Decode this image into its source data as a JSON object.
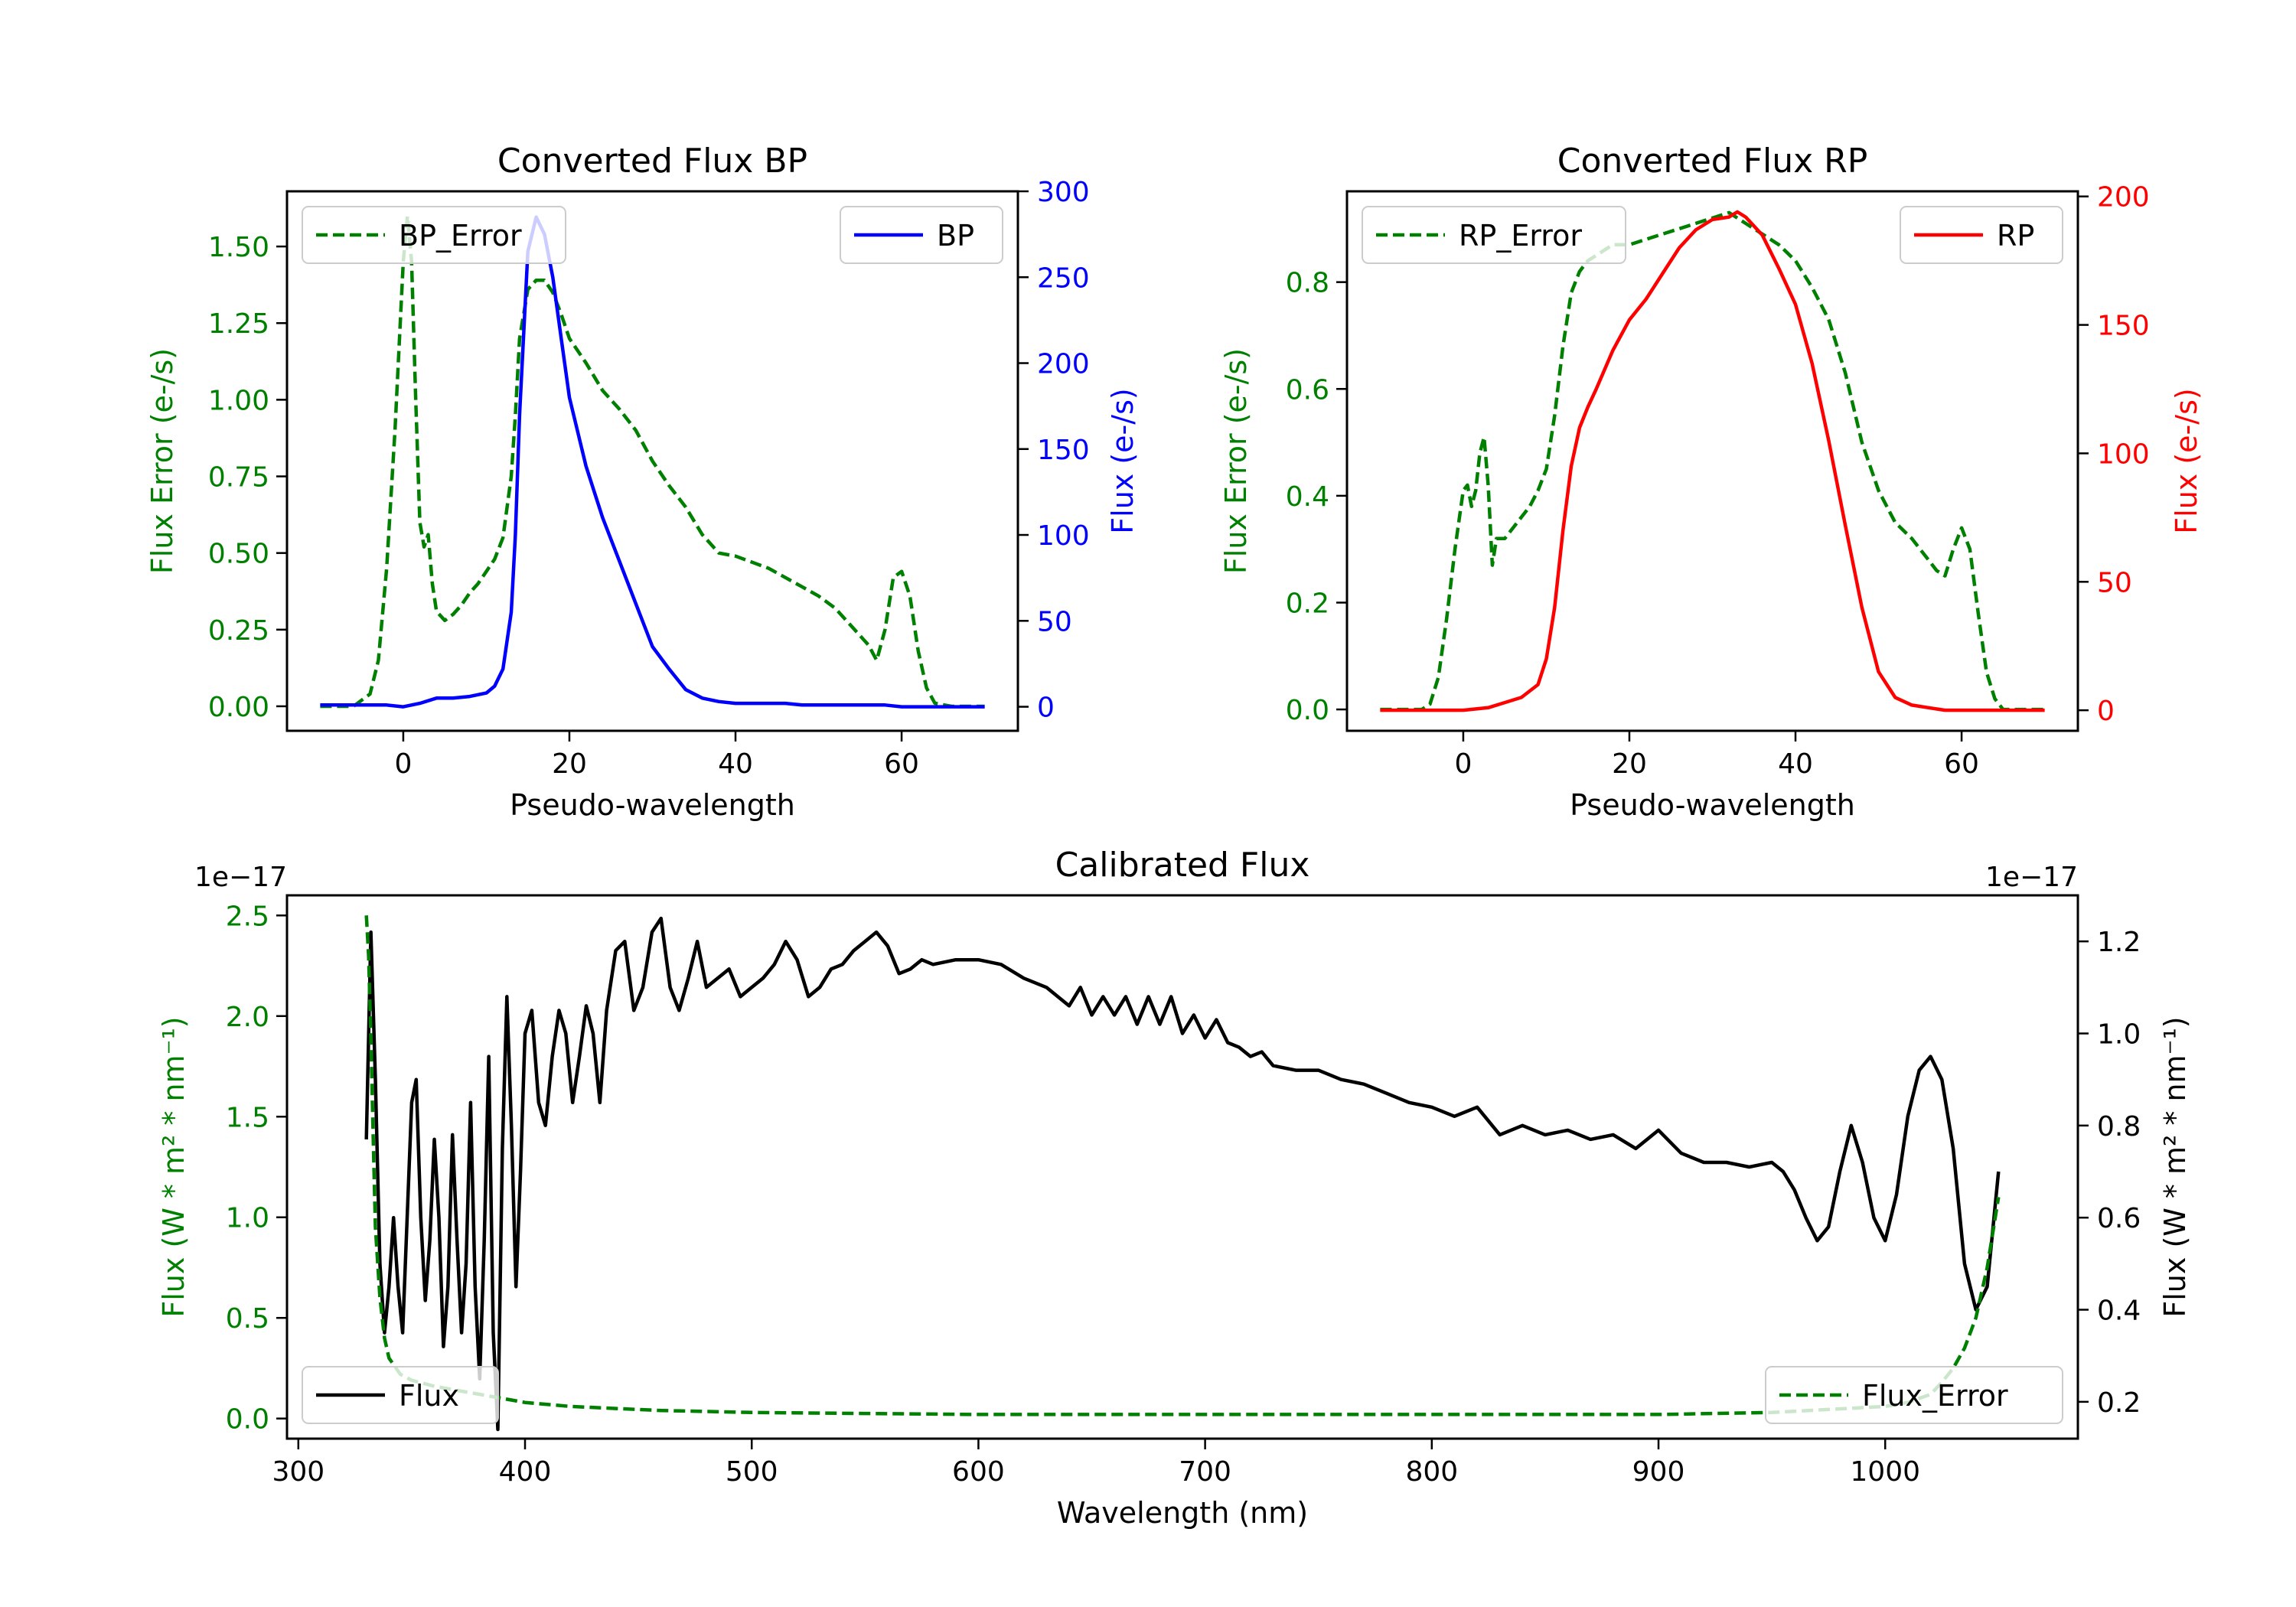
{
  "chart_data": [
    {
      "type": "line",
      "title": "Converted Flux BP",
      "xlabel": "Pseudo-wavelength",
      "xlim": [
        -14,
        74
      ],
      "x_ticks": [
        0,
        20,
        40,
        60
      ],
      "y_left": {
        "label": "Flux Error (e-/s)",
        "color": "#008000",
        "ylim": [
          -0.08,
          1.68
        ],
        "ticks": [
          0.0,
          0.25,
          0.5,
          0.75,
          1.0,
          1.25,
          1.5
        ],
        "tick_labels": [
          "0.00",
          "0.25",
          "0.50",
          "0.75",
          "1.00",
          "1.25",
          "1.50"
        ]
      },
      "y_right": {
        "label": "Flux (e-/s)",
        "color": "#0000ff",
        "ylim": [
          -14,
          300
        ],
        "ticks": [
          0,
          50,
          100,
          150,
          200,
          250,
          300
        ],
        "tick_labels": [
          "0",
          "50",
          "100",
          "150",
          "200",
          "250",
          "300"
        ]
      },
      "series": [
        {
          "name": "BP_Error",
          "axis": "left",
          "color": "#008000",
          "dash": true,
          "legend_loc": "upper left",
          "x": [
            -10,
            -8,
            -6,
            -4,
            -3,
            -2,
            -1,
            0,
            0.5,
            1,
            1.5,
            2,
            2.5,
            3,
            3.5,
            4,
            5,
            6,
            7,
            8,
            9,
            10,
            11,
            12,
            13,
            13.5,
            14,
            15,
            16,
            17,
            18,
            19,
            20,
            22,
            24,
            26,
            28,
            30,
            32,
            34,
            36,
            38,
            40,
            42,
            44,
            46,
            48,
            50,
            52,
            54,
            56,
            57,
            58,
            59,
            60,
            61,
            62,
            63,
            64,
            66,
            68,
            70
          ],
          "values": [
            0,
            0,
            0,
            0.04,
            0.15,
            0.45,
            0.9,
            1.45,
            1.6,
            1.45,
            1.0,
            0.6,
            0.52,
            0.56,
            0.4,
            0.31,
            0.28,
            0.3,
            0.33,
            0.37,
            0.4,
            0.44,
            0.48,
            0.55,
            0.75,
            0.95,
            1.2,
            1.36,
            1.39,
            1.39,
            1.35,
            1.28,
            1.2,
            1.12,
            1.03,
            0.97,
            0.9,
            0.8,
            0.72,
            0.65,
            0.56,
            0.5,
            0.49,
            0.47,
            0.45,
            0.42,
            0.39,
            0.36,
            0.32,
            0.26,
            0.2,
            0.15,
            0.25,
            0.42,
            0.44,
            0.36,
            0.18,
            0.06,
            0.01,
            0,
            0,
            0
          ]
        },
        {
          "name": "BP",
          "axis": "right",
          "color": "#0000ff",
          "dash": false,
          "legend_loc": "upper right",
          "x": [
            -10,
            -5,
            -2,
            0,
            2,
            4,
            6,
            8,
            10,
            11,
            12,
            13,
            13.5,
            14,
            15,
            16,
            17,
            18,
            19,
            20,
            22,
            24,
            26,
            28,
            30,
            32,
            34,
            36,
            38,
            40,
            42,
            44,
            46,
            48,
            50,
            52,
            54,
            56,
            58,
            60,
            62,
            64,
            66,
            68,
            70
          ],
          "values": [
            1,
            1,
            1,
            0,
            2,
            5,
            5,
            6,
            8,
            12,
            22,
            55,
            100,
            170,
            265,
            285,
            275,
            250,
            215,
            180,
            140,
            110,
            85,
            60,
            35,
            22,
            10,
            5,
            3,
            2,
            2,
            2,
            2,
            1,
            1,
            1,
            1,
            1,
            1,
            0,
            0,
            0,
            0,
            0,
            0
          ]
        }
      ]
    },
    {
      "type": "line",
      "title": "Converted Flux RP",
      "xlabel": "Pseudo-wavelength",
      "xlim": [
        -14,
        74
      ],
      "x_ticks": [
        0,
        20,
        40,
        60
      ],
      "y_left": {
        "label": "Flux Error (e-/s)",
        "color": "#008000",
        "ylim": [
          -0.04,
          0.97
        ],
        "ticks": [
          0.0,
          0.2,
          0.4,
          0.6,
          0.8
        ],
        "tick_labels": [
          "0.0",
          "0.2",
          "0.4",
          "0.6",
          "0.8"
        ]
      },
      "y_right": {
        "label": "Flux (e-/s)",
        "color": "#ff0000",
        "ylim": [
          -8,
          202
        ],
        "ticks": [
          0,
          50,
          100,
          150,
          200
        ],
        "tick_labels": [
          "0",
          "50",
          "100",
          "150",
          "200"
        ]
      },
      "series": [
        {
          "name": "RP_Error",
          "axis": "left",
          "color": "#008000",
          "dash": true,
          "legend_loc": "upper left",
          "x": [
            -10,
            -5,
            -4,
            -3,
            -2,
            -1,
            0,
            0.5,
            1,
            1.5,
            2,
            2.5,
            3,
            3.5,
            4,
            5,
            6,
            7,
            8,
            9,
            10,
            11,
            12,
            13,
            14,
            15,
            16,
            18,
            20,
            22,
            24,
            26,
            28,
            30,
            32,
            34,
            36,
            38,
            40,
            42,
            44,
            46,
            48,
            50,
            52,
            54,
            56,
            57,
            58,
            59,
            60,
            61,
            62,
            63,
            64,
            65,
            66,
            68,
            70
          ],
          "values": [
            0,
            0,
            0.01,
            0.06,
            0.17,
            0.3,
            0.41,
            0.42,
            0.38,
            0.41,
            0.48,
            0.51,
            0.42,
            0.27,
            0.32,
            0.32,
            0.34,
            0.36,
            0.38,
            0.41,
            0.45,
            0.55,
            0.68,
            0.78,
            0.82,
            0.84,
            0.85,
            0.87,
            0.87,
            0.88,
            0.89,
            0.9,
            0.91,
            0.92,
            0.93,
            0.91,
            0.89,
            0.87,
            0.84,
            0.79,
            0.73,
            0.63,
            0.5,
            0.41,
            0.35,
            0.32,
            0.28,
            0.26,
            0.25,
            0.3,
            0.34,
            0.3,
            0.18,
            0.07,
            0.02,
            0,
            0,
            0,
            0
          ]
        },
        {
          "name": "RP",
          "axis": "right",
          "color": "#ff0000",
          "dash": false,
          "legend_loc": "upper right",
          "x": [
            -10,
            -5,
            0,
            3,
            5,
            7,
            9,
            10,
            11,
            12,
            13,
            14,
            15,
            16,
            18,
            20,
            22,
            24,
            26,
            28,
            30,
            32,
            33,
            34,
            36,
            38,
            40,
            42,
            44,
            46,
            48,
            50,
            52,
            54,
            56,
            58,
            60,
            62,
            64,
            66,
            68,
            70
          ],
          "values": [
            0,
            0,
            0,
            1,
            3,
            5,
            10,
            20,
            40,
            70,
            95,
            110,
            118,
            125,
            140,
            152,
            160,
            170,
            180,
            187,
            191,
            192,
            194,
            192,
            185,
            172,
            158,
            135,
            105,
            72,
            40,
            15,
            5,
            2,
            1,
            0,
            0,
            0,
            0,
            0,
            0,
            0
          ]
        }
      ]
    },
    {
      "type": "line",
      "title": "Calibrated Flux",
      "xlabel": "Wavelength (nm)",
      "xlim": [
        295,
        1085
      ],
      "x_ticks": [
        300,
        400,
        500,
        600,
        700,
        800,
        900,
        1000
      ],
      "y_left": {
        "label": "Flux (W * m² * nm⁻¹)",
        "color": "#008000",
        "scale_text": "1e−17",
        "ylim": [
          -0.1,
          2.6
        ],
        "ticks": [
          0.0,
          0.5,
          1.0,
          1.5,
          2.0,
          2.5
        ],
        "tick_labels": [
          "0.0",
          "0.5",
          "1.0",
          "1.5",
          "2.0",
          "2.5"
        ]
      },
      "y_right": {
        "label": "Flux (W * m² * nm⁻¹)",
        "color": "#000000",
        "scale_text": "1e−17",
        "ylim": [
          0.12,
          1.3
        ],
        "ticks": [
          0.2,
          0.4,
          0.6,
          0.8,
          1.0,
          1.2
        ],
        "tick_labels": [
          "0.2",
          "0.4",
          "0.6",
          "0.8",
          "1.0",
          "1.2"
        ]
      },
      "series": [
        {
          "name": "Flux",
          "axis": "right",
          "color": "#000000",
          "dash": false,
          "legend_loc": "lower left",
          "x": [
            330,
            332,
            334,
            336,
            338,
            340,
            342,
            344,
            346,
            348,
            350,
            352,
            354,
            356,
            358,
            360,
            362,
            364,
            366,
            368,
            370,
            372,
            374,
            376,
            378,
            380,
            382,
            384,
            386,
            388,
            390,
            392,
            394,
            396,
            398,
            400,
            403,
            406,
            409,
            412,
            415,
            418,
            421,
            424,
            427,
            430,
            433,
            436,
            440,
            444,
            448,
            452,
            456,
            460,
            464,
            468,
            472,
            476,
            480,
            485,
            490,
            495,
            500,
            505,
            510,
            515,
            520,
            525,
            530,
            535,
            540,
            545,
            550,
            555,
            560,
            565,
            570,
            575,
            580,
            590,
            600,
            610,
            620,
            630,
            640,
            645,
            650,
            655,
            660,
            665,
            670,
            675,
            680,
            685,
            690,
            695,
            700,
            705,
            710,
            715,
            720,
            725,
            730,
            740,
            750,
            760,
            770,
            780,
            790,
            800,
            810,
            820,
            830,
            840,
            850,
            860,
            870,
            880,
            890,
            900,
            910,
            920,
            930,
            940,
            950,
            955,
            960,
            965,
            970,
            975,
            980,
            985,
            990,
            995,
            1000,
            1005,
            1010,
            1015,
            1020,
            1025,
            1030,
            1035,
            1040,
            1045,
            1050
          ],
          "values": [
            0.77,
            1.22,
            0.9,
            0.5,
            0.35,
            0.45,
            0.6,
            0.45,
            0.35,
            0.6,
            0.85,
            0.9,
            0.6,
            0.42,
            0.55,
            0.77,
            0.6,
            0.32,
            0.45,
            0.78,
            0.55,
            0.35,
            0.5,
            0.85,
            0.45,
            0.25,
            0.55,
            0.95,
            0.35,
            0.14,
            0.75,
            1.08,
            0.8,
            0.45,
            0.7,
            1.0,
            1.05,
            0.85,
            0.8,
            0.95,
            1.05,
            1.0,
            0.85,
            0.95,
            1.06,
            1.0,
            0.85,
            1.05,
            1.18,
            1.2,
            1.05,
            1.1,
            1.22,
            1.25,
            1.1,
            1.05,
            1.12,
            1.2,
            1.1,
            1.12,
            1.14,
            1.08,
            1.1,
            1.12,
            1.15,
            1.2,
            1.16,
            1.08,
            1.1,
            1.14,
            1.15,
            1.18,
            1.2,
            1.22,
            1.19,
            1.13,
            1.14,
            1.16,
            1.15,
            1.16,
            1.16,
            1.15,
            1.12,
            1.1,
            1.06,
            1.1,
            1.04,
            1.08,
            1.04,
            1.08,
            1.02,
            1.08,
            1.02,
            1.08,
            1.0,
            1.04,
            0.99,
            1.03,
            0.98,
            0.97,
            0.95,
            0.96,
            0.93,
            0.92,
            0.92,
            0.9,
            0.89,
            0.87,
            0.85,
            0.84,
            0.82,
            0.84,
            0.78,
            0.8,
            0.78,
            0.79,
            0.77,
            0.78,
            0.75,
            0.79,
            0.74,
            0.72,
            0.72,
            0.71,
            0.72,
            0.7,
            0.66,
            0.6,
            0.55,
            0.58,
            0.7,
            0.8,
            0.72,
            0.6,
            0.55,
            0.65,
            0.82,
            0.92,
            0.95,
            0.9,
            0.75,
            0.5,
            0.4,
            0.45,
            0.7
          ]
        },
        {
          "name": "Flux_Error",
          "axis": "left",
          "color": "#008000",
          "dash": true,
          "legend_loc": "lower right",
          "x": [
            330,
            331,
            332,
            333,
            334,
            336,
            338,
            340,
            345,
            350,
            360,
            370,
            380,
            390,
            400,
            420,
            440,
            460,
            480,
            500,
            550,
            600,
            650,
            700,
            800,
            900,
            950,
            1000,
            1010,
            1020,
            1025,
            1030,
            1035,
            1040,
            1045,
            1050
          ],
          "values": [
            2.5,
            2.3,
            1.9,
            1.4,
            0.95,
            0.6,
            0.4,
            0.3,
            0.22,
            0.19,
            0.16,
            0.14,
            0.12,
            0.1,
            0.08,
            0.06,
            0.05,
            0.04,
            0.035,
            0.03,
            0.025,
            0.02,
            0.02,
            0.02,
            0.02,
            0.02,
            0.03,
            0.06,
            0.08,
            0.12,
            0.18,
            0.25,
            0.35,
            0.5,
            0.75,
            1.1
          ]
        }
      ]
    }
  ]
}
